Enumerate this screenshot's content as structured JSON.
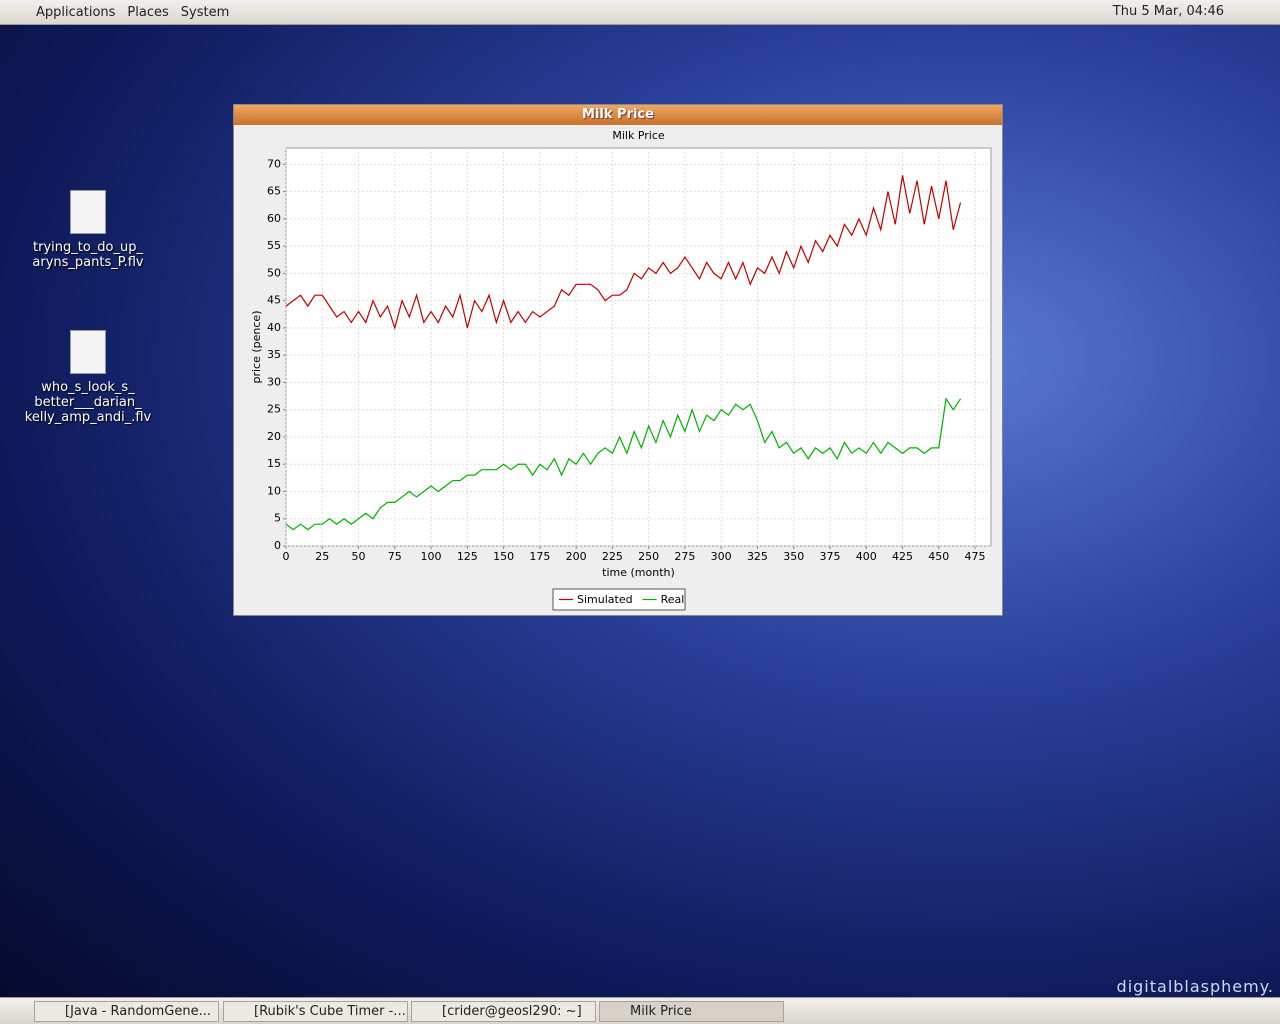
{
  "panel": {
    "menus": [
      "Applications",
      "Places",
      "System"
    ],
    "clock": "Thu  5 Mar, 04:46"
  },
  "desktop": {
    "icons": [
      {
        "lines": [
          "trying_to_do_up_",
          "aryns_pants_P.flv"
        ]
      },
      {
        "lines": [
          "who_s_look_s_",
          "better___darian_",
          "kelly_amp_andi_.flv"
        ]
      }
    ],
    "watermark": "digitalblasphemy."
  },
  "window": {
    "title": "Milk Price"
  },
  "taskbar": {
    "items": [
      "[Java - RandomGene...",
      "[Rubik's Cube Timer -...",
      "[crider@geosl290: ~]",
      "Milk Price"
    ]
  },
  "chart_data": {
    "type": "line",
    "title": "Milk Price",
    "x_label": "time (month)",
    "y_label": "price (pence)",
    "x": [
      0,
      5,
      10,
      15,
      20,
      25,
      30,
      35,
      40,
      45,
      50,
      55,
      60,
      65,
      70,
      75,
      80,
      85,
      90,
      95,
      100,
      105,
      110,
      115,
      120,
      125,
      130,
      135,
      140,
      145,
      150,
      155,
      160,
      165,
      170,
      175,
      180,
      185,
      190,
      195,
      200,
      205,
      210,
      215,
      220,
      225,
      230,
      235,
      240,
      245,
      250,
      255,
      260,
      265,
      270,
      275,
      280,
      285,
      290,
      295,
      300,
      305,
      310,
      315,
      320,
      325,
      330,
      335,
      340,
      345,
      350,
      355,
      360,
      365,
      370,
      375,
      380,
      385,
      390,
      395,
      400,
      405,
      410,
      415,
      420,
      425,
      430,
      435,
      440,
      445,
      450,
      455,
      460,
      465
    ],
    "series": [
      {
        "name": "Simulated",
        "color": "#c00000",
        "values": [
          44,
          45,
          46,
          44,
          46,
          46,
          44,
          42,
          43,
          41,
          43,
          41,
          45,
          42,
          44,
          40,
          45,
          42,
          46,
          41,
          43,
          41,
          44,
          42,
          46,
          40,
          45,
          43,
          46,
          41,
          45,
          41,
          43,
          41,
          43,
          42,
          43,
          44,
          47,
          46,
          48,
          48,
          48,
          47,
          45,
          46,
          46,
          47,
          50,
          49,
          51,
          50,
          52,
          50,
          51,
          53,
          51,
          49,
          52,
          50,
          49,
          52,
          49,
          52,
          48,
          51,
          50,
          53,
          50,
          54,
          51,
          55,
          52,
          56,
          54,
          57,
          55,
          59,
          57,
          60,
          57,
          62,
          58,
          65,
          59,
          68,
          61,
          67,
          59,
          66,
          60,
          67,
          58,
          63
        ]
      },
      {
        "name": "Real",
        "color": "#00b000",
        "values": [
          4,
          3,
          4,
          3,
          4,
          4,
          5,
          4,
          5,
          4,
          5,
          6,
          5,
          7,
          8,
          8,
          9,
          10,
          9,
          10,
          11,
          10,
          11,
          12,
          12,
          13,
          13,
          14,
          14,
          14,
          15,
          14,
          15,
          15,
          13,
          15,
          14,
          16,
          13,
          16,
          15,
          17,
          15,
          17,
          18,
          17,
          20,
          17,
          21,
          18,
          22,
          19,
          23,
          20,
          24,
          21,
          25,
          21,
          24,
          23,
          25,
          24,
          26,
          25,
          26,
          23,
          19,
          21,
          18,
          19,
          17,
          18,
          16,
          18,
          17,
          18,
          16,
          19,
          17,
          18,
          17,
          19,
          17,
          19,
          18,
          17,
          18,
          18,
          17,
          18,
          18,
          27,
          25,
          27
        ]
      }
    ],
    "xlim": [
      0,
      486
    ],
    "xticks": [
      0,
      25,
      50,
      75,
      100,
      125,
      150,
      175,
      200,
      225,
      250,
      275,
      300,
      325,
      350,
      375,
      400,
      425,
      450,
      475
    ],
    "ylim": [
      0,
      73
    ],
    "yticks": [
      0,
      5,
      10,
      15,
      20,
      25,
      30,
      35,
      40,
      45,
      50,
      55,
      60,
      65,
      70
    ],
    "grid": true,
    "legend": "bottom"
  }
}
